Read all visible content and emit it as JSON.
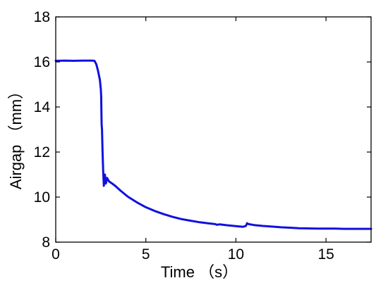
{
  "chart_data": {
    "type": "line",
    "xlabel": "Time （s）",
    "ylabel": "Airgap （mm）",
    "xlim": [
      0,
      17.5
    ],
    "ylim": [
      8,
      18
    ],
    "x_ticks": [
      0,
      5,
      10,
      15
    ],
    "y_ticks": [
      8,
      10,
      12,
      14,
      16,
      18
    ],
    "x_tick_labels": [
      "0",
      "5",
      "10",
      "15"
    ],
    "y_tick_labels": [
      "8",
      "10",
      "12",
      "14",
      "16",
      "18"
    ],
    "grid": false,
    "series": [
      {
        "color": "#1010e0",
        "points": [
          [
            0.0,
            16.05
          ],
          [
            0.5,
            16.06
          ],
          [
            1.0,
            16.05
          ],
          [
            1.5,
            16.06
          ],
          [
            2.0,
            16.06
          ],
          [
            2.15,
            16.05
          ],
          [
            2.25,
            15.9
          ],
          [
            2.35,
            15.6
          ],
          [
            2.45,
            15.2
          ],
          [
            2.5,
            14.8
          ],
          [
            2.52,
            14.5
          ],
          [
            2.54,
            13.5
          ],
          [
            2.55,
            13.2
          ],
          [
            2.57,
            13.0
          ],
          [
            2.6,
            12.0
          ],
          [
            2.63,
            11.2
          ],
          [
            2.67,
            10.5
          ],
          [
            2.7,
            10.8
          ],
          [
            2.73,
            11.0
          ],
          [
            2.78,
            10.6
          ],
          [
            2.85,
            10.85
          ],
          [
            2.95,
            10.7
          ],
          [
            3.1,
            10.62
          ],
          [
            3.3,
            10.5
          ],
          [
            3.6,
            10.28
          ],
          [
            4.0,
            10.02
          ],
          [
            4.5,
            9.77
          ],
          [
            5.0,
            9.55
          ],
          [
            5.5,
            9.38
          ],
          [
            6.0,
            9.24
          ],
          [
            6.5,
            9.12
          ],
          [
            7.0,
            9.02
          ],
          [
            7.5,
            8.95
          ],
          [
            8.0,
            8.88
          ],
          [
            8.5,
            8.83
          ],
          [
            8.85,
            8.8
          ],
          [
            8.95,
            8.77
          ],
          [
            9.1,
            8.79
          ],
          [
            9.5,
            8.75
          ],
          [
            10.0,
            8.71
          ],
          [
            10.4,
            8.68
          ],
          [
            10.55,
            8.72
          ],
          [
            10.62,
            8.84
          ],
          [
            10.7,
            8.8
          ],
          [
            10.85,
            8.78
          ],
          [
            11.0,
            8.76
          ],
          [
            11.5,
            8.72
          ],
          [
            12.0,
            8.69
          ],
          [
            12.5,
            8.66
          ],
          [
            13.0,
            8.64
          ],
          [
            13.5,
            8.62
          ],
          [
            14.0,
            8.61
          ],
          [
            14.5,
            8.6
          ],
          [
            15.0,
            8.6
          ],
          [
            15.5,
            8.6
          ],
          [
            16.0,
            8.59
          ],
          [
            16.5,
            8.59
          ],
          [
            17.0,
            8.59
          ],
          [
            17.5,
            8.59
          ]
        ]
      }
    ]
  }
}
